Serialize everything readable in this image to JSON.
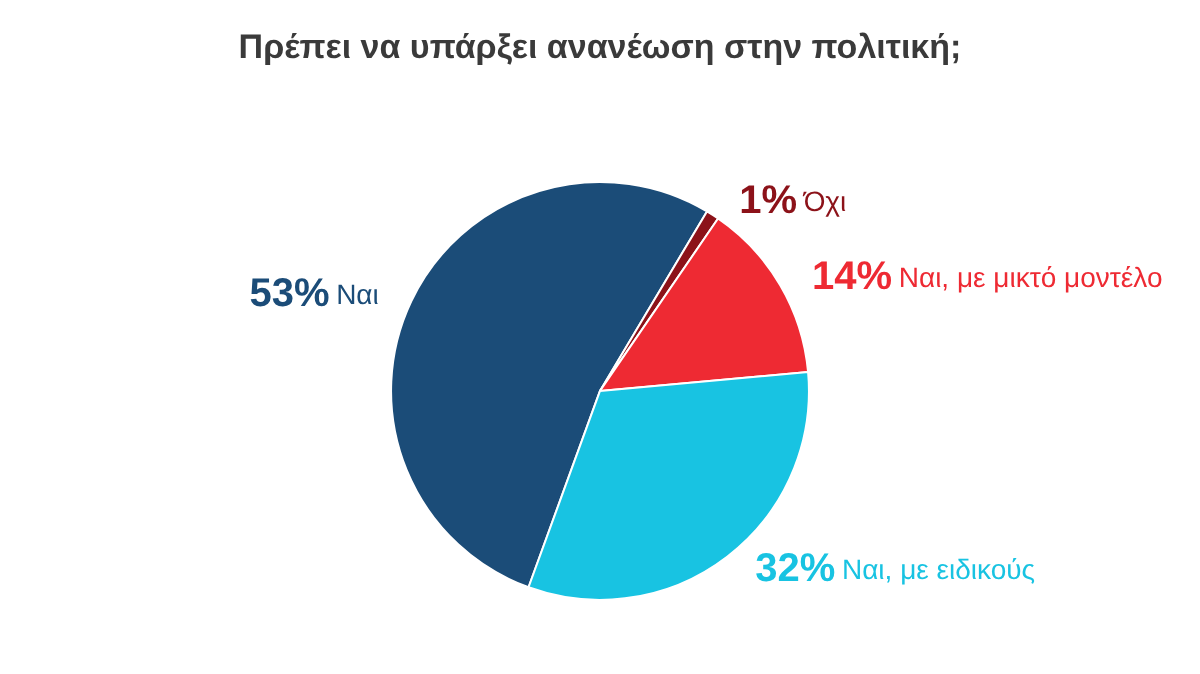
{
  "chart_data": {
    "type": "pie",
    "title": "Πρέπει να υπάρξει ανανέωση στην πολιτική;",
    "categories": [
      "Ναι",
      "Όχι",
      "Ναι, με μικτό μοντέλο",
      "Ναι, με ειδικούς"
    ],
    "values": [
      53,
      1,
      14,
      32
    ],
    "value_labels": [
      "53%",
      "1%",
      "14%",
      "32%"
    ],
    "colors": [
      "#1b4c78",
      "#8c1219",
      "#ee2a33",
      "#18c3e2"
    ],
    "legend": false
  }
}
